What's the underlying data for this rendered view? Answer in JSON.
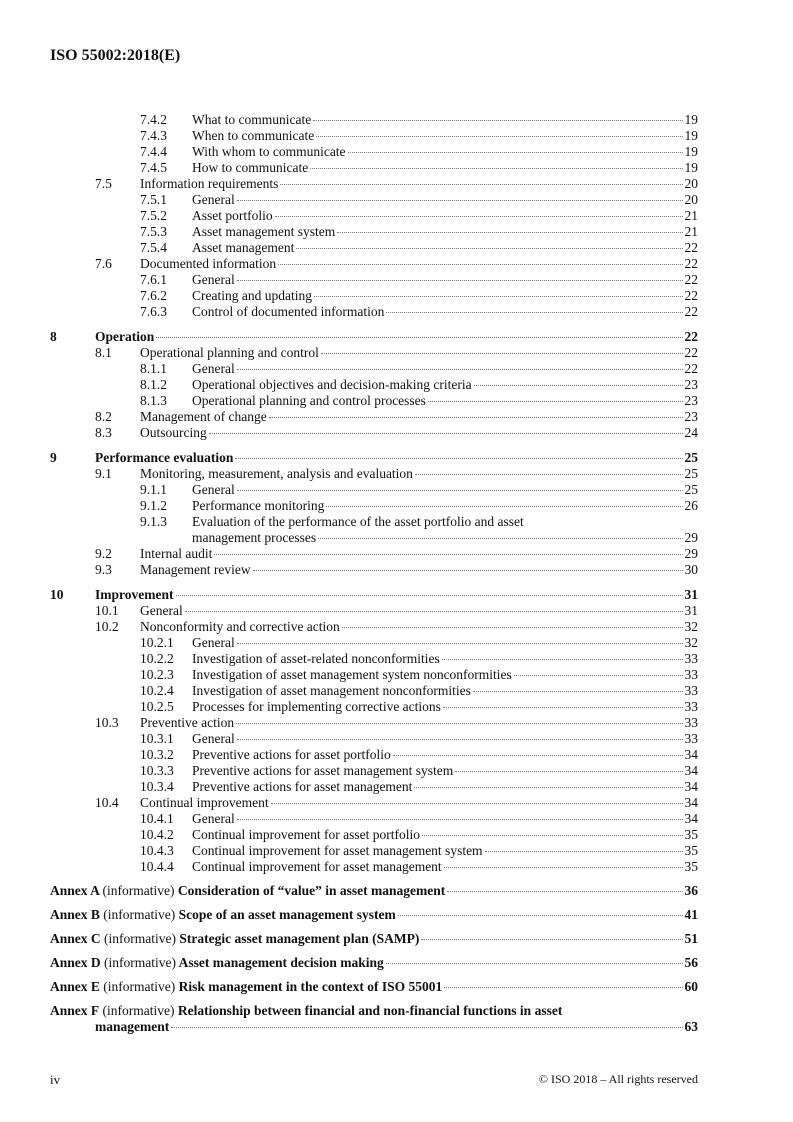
{
  "header": {
    "doc_id": "ISO 55002:2018(E)"
  },
  "toc": [
    {
      "level": 3,
      "num": "7.4.2",
      "title": "What to communicate",
      "page": "19"
    },
    {
      "level": 3,
      "num": "7.4.3",
      "title": "When to communicate",
      "page": "19"
    },
    {
      "level": 3,
      "num": "7.4.4",
      "title": "With whom to communicate",
      "page": "19"
    },
    {
      "level": 3,
      "num": "7.4.5",
      "title": "How to communicate",
      "page": "19"
    },
    {
      "level": 2,
      "num": "7.5",
      "title": "Information requirements",
      "page": "20"
    },
    {
      "level": 3,
      "num": "7.5.1",
      "title": "General",
      "page": "20"
    },
    {
      "level": 3,
      "num": "7.5.2",
      "title": "Asset portfolio",
      "page": "21"
    },
    {
      "level": 3,
      "num": "7.5.3",
      "title": "Asset management system",
      "page": "21"
    },
    {
      "level": 3,
      "num": "7.5.4",
      "title": "Asset management",
      "page": "22"
    },
    {
      "level": 2,
      "num": "7.6",
      "title": "Documented information",
      "page": "22"
    },
    {
      "level": 3,
      "num": "7.6.1",
      "title": "General",
      "page": "22"
    },
    {
      "level": 3,
      "num": "7.6.2",
      "title": "Creating and updating",
      "page": "22"
    },
    {
      "level": 3,
      "num": "7.6.3",
      "title": "Control of documented information",
      "page": "22"
    },
    {
      "level": 1,
      "num": "8",
      "title": "Operation",
      "page": "22"
    },
    {
      "level": 2,
      "num": "8.1",
      "title": "Operational planning and control",
      "page": "22"
    },
    {
      "level": 3,
      "num": "8.1.1",
      "title": "General",
      "page": "22"
    },
    {
      "level": 3,
      "num": "8.1.2",
      "title": "Operational objectives and decision-making criteria",
      "page": "23"
    },
    {
      "level": 3,
      "num": "8.1.3",
      "title": "Operational planning and control processes",
      "page": "23"
    },
    {
      "level": 2,
      "num": "8.2",
      "title": "Management of change",
      "page": "23"
    },
    {
      "level": 2,
      "num": "8.3",
      "title": "Outsourcing",
      "page": "24"
    },
    {
      "level": 1,
      "num": "9",
      "title": "Performance evaluation",
      "page": "25"
    },
    {
      "level": 2,
      "num": "9.1",
      "title": "Monitoring, measurement, analysis and evaluation",
      "page": "25"
    },
    {
      "level": 3,
      "num": "9.1.1",
      "title": "General",
      "page": "25"
    },
    {
      "level": 3,
      "num": "9.1.2",
      "title": "Performance monitoring",
      "page": "26"
    },
    {
      "level": 3,
      "num": "9.1.3",
      "title": "Evaluation of the performance of the asset portfolio and asset",
      "title_cont": "management processes",
      "page": "29"
    },
    {
      "level": 2,
      "num": "9.2",
      "title": "Internal audit",
      "page": "29"
    },
    {
      "level": 2,
      "num": "9.3",
      "title": "Management review",
      "page": "30"
    },
    {
      "level": 1,
      "num": "10",
      "title": "Improvement",
      "page": "31"
    },
    {
      "level": 2,
      "num": "10.1",
      "title": "General",
      "page": "31"
    },
    {
      "level": 2,
      "num": "10.2",
      "title": "Nonconformity and corrective action",
      "page": "32"
    },
    {
      "level": 3,
      "num": "10.2.1",
      "title": "General",
      "page": "32"
    },
    {
      "level": 3,
      "num": "10.2.2",
      "title": "Investigation of asset-related nonconformities",
      "page": "33"
    },
    {
      "level": 3,
      "num": "10.2.3",
      "title": "Investigation of asset management system nonconformities",
      "page": "33"
    },
    {
      "level": 3,
      "num": "10.2.4",
      "title": "Investigation of asset management nonconformities",
      "page": "33"
    },
    {
      "level": 3,
      "num": "10.2.5",
      "title": "Processes for implementing corrective actions",
      "page": "33"
    },
    {
      "level": 2,
      "num": "10.3",
      "title": "Preventive action",
      "page": "33"
    },
    {
      "level": 3,
      "num": "10.3.1",
      "title": "General",
      "page": "33"
    },
    {
      "level": 3,
      "num": "10.3.2",
      "title": "Preventive actions for asset portfolio",
      "page": "34"
    },
    {
      "level": 3,
      "num": "10.3.3",
      "title": "Preventive actions for asset management system",
      "page": "34"
    },
    {
      "level": 3,
      "num": "10.3.4",
      "title": "Preventive actions for asset management",
      "page": "34"
    },
    {
      "level": 2,
      "num": "10.4",
      "title": "Continual improvement",
      "page": "34"
    },
    {
      "level": 3,
      "num": "10.4.1",
      "title": "General",
      "page": "34"
    },
    {
      "level": 3,
      "num": "10.4.2",
      "title": "Continual improvement for asset portfolio",
      "page": "35"
    },
    {
      "level": 3,
      "num": "10.4.3",
      "title": "Continual improvement for asset management system",
      "page": "35"
    },
    {
      "level": 3,
      "num": "10.4.4",
      "title": "Continual improvement for asset management",
      "page": "35"
    }
  ],
  "annexes": [
    {
      "label": "Annex A",
      "note": "(informative)",
      "title": "Consideration of “value” in asset management",
      "page": "36"
    },
    {
      "label": "Annex B",
      "note": "(informative)",
      "title": "Scope of an asset management system",
      "page": "41"
    },
    {
      "label": "Annex C",
      "note": "(informative)",
      "title": "Strategic asset management plan (SAMP)",
      "page": "51"
    },
    {
      "label": "Annex D",
      "note": "(informative)",
      "title": "Asset management decision making",
      "page": "56"
    },
    {
      "label": "Annex E",
      "note": "(informative)",
      "title": "Risk management in the context of ISO 55001",
      "page": "60"
    },
    {
      "label": "Annex F",
      "note": "(informative)",
      "title": "Relationship between financial and non-financial functions in asset",
      "title_cont": "management",
      "page": "63"
    }
  ],
  "footer": {
    "page_number": "iv",
    "copyright": "© ISO 2018 – All rights reserved"
  }
}
